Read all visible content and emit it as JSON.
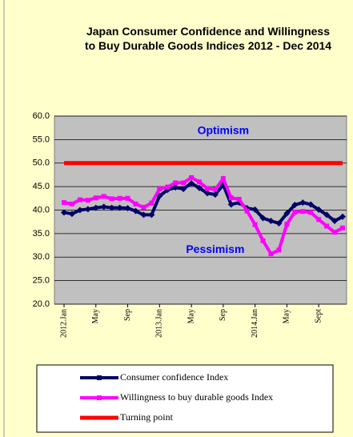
{
  "chart_data": {
    "type": "line",
    "title": "Japan Consumer Confidence and Willingness to Buy Durable Goods Indices 2012 - Dec  2014",
    "categories": [
      "2012.Jan",
      null,
      null,
      null,
      "May",
      null,
      null,
      null,
      "Sep",
      null,
      null,
      null,
      "2013.Jan",
      null,
      null,
      null,
      "May",
      null,
      null,
      null,
      "Sep",
      null,
      null,
      null,
      "2014.Jan",
      null,
      null,
      null,
      "May",
      null,
      null,
      null,
      "Sept",
      null,
      null,
      null
    ],
    "series": [
      {
        "name": "Consumer confidence Index",
        "color": "#000066",
        "marker": true,
        "values": [
          39.5,
          39.2,
          40.0,
          40.2,
          40.5,
          40.7,
          40.5,
          40.5,
          40.4,
          39.8,
          39.0,
          39.0,
          43.0,
          44.3,
          44.8,
          44.5,
          45.7,
          44.7,
          43.6,
          43.3,
          45.4,
          41.2,
          41.6,
          40.4,
          40.1,
          38.3,
          37.7,
          37.2,
          39.3,
          41.1,
          41.6,
          41.2,
          40.1,
          39.0,
          37.7,
          38.6
        ]
      },
      {
        "name": "Willingness to buy durable goods Index",
        "color": "#ff00ff",
        "marker": true,
        "values": [
          41.6,
          41.3,
          42.2,
          42.1,
          42.6,
          42.9,
          42.4,
          42.5,
          42.5,
          41.3,
          40.6,
          41.5,
          44.5,
          44.9,
          45.8,
          45.8,
          46.9,
          46.0,
          44.6,
          44.4,
          46.7,
          42.6,
          42.3,
          39.8,
          36.9,
          33.5,
          30.7,
          31.5,
          37.0,
          39.6,
          39.7,
          39.5,
          38.0,
          36.6,
          35.3,
          36.2
        ]
      },
      {
        "name": "Turning point",
        "color": "#ff0000",
        "marker": false,
        "values": [
          50,
          50,
          50,
          50,
          50,
          50,
          50,
          50,
          50,
          50,
          50,
          50,
          50,
          50,
          50,
          50,
          50,
          50,
          50,
          50,
          50,
          50,
          50,
          50,
          50,
          50,
          50,
          50,
          50,
          50,
          50,
          50,
          50,
          50,
          50,
          50
        ]
      }
    ],
    "ylim": [
      20,
      60
    ],
    "yticks": [
      {
        "value": 20,
        "label": "20.0"
      },
      {
        "value": 25,
        "label": "25.0"
      },
      {
        "value": 30,
        "label": "30.0"
      },
      {
        "value": 35,
        "label": "35.0"
      },
      {
        "value": 40,
        "label": "40.0"
      },
      {
        "value": 45,
        "label": "45.0"
      },
      {
        "value": 50,
        "label": "50.0"
      },
      {
        "value": 55,
        "label": "55.0"
      },
      {
        "value": 60,
        "label": "60.0"
      }
    ],
    "grid": true,
    "annotations": [
      {
        "text": "Optimism",
        "x": 20,
        "y": 56.8
      },
      {
        "text": "Pessimism",
        "x": 19,
        "y": 31.5
      }
    ],
    "legend": "bottom"
  }
}
